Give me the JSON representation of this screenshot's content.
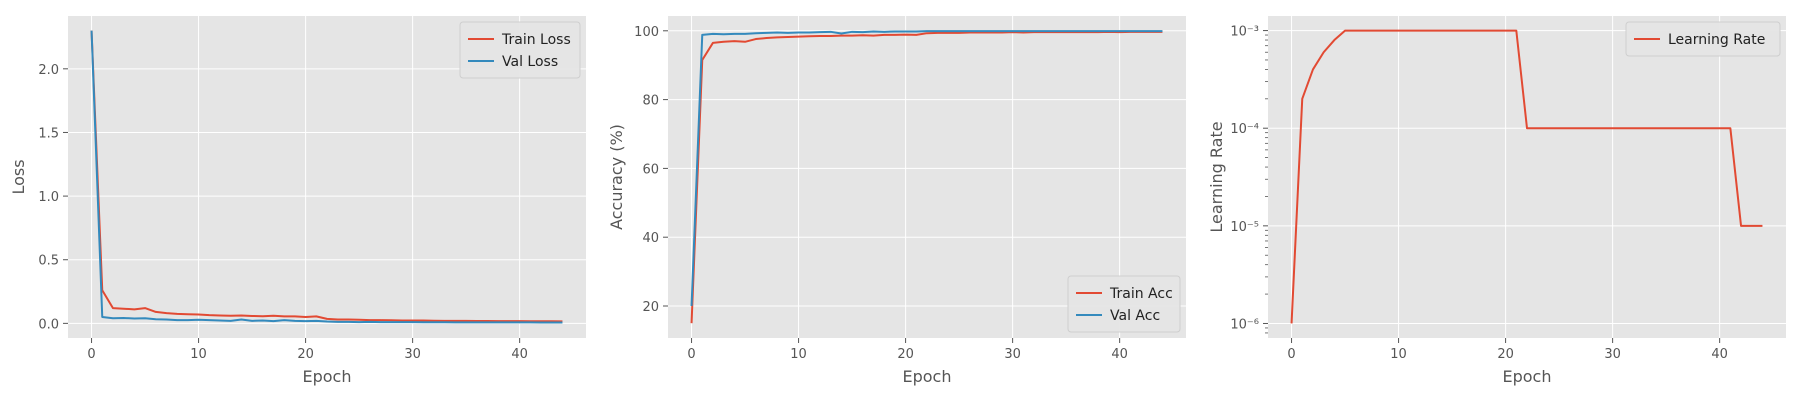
{
  "colors": {
    "train": "#e24a33",
    "val": "#348abd",
    "panel_bg": "#e5e5e5",
    "grid": "#ffffff"
  },
  "chart_data": [
    {
      "type": "line",
      "xlabel": "Epoch",
      "ylabel": "Loss",
      "xlim": [
        -2.2,
        46.2
      ],
      "ylim": [
        -0.115,
        2.415
      ],
      "xticks": [
        0,
        10,
        20,
        30,
        40
      ],
      "xtick_labels": [
        "0",
        "10",
        "20",
        "30",
        "40"
      ],
      "yticks": [
        0.0,
        0.5,
        1.0,
        1.5,
        2.0
      ],
      "ytick_labels": [
        "0.0",
        "0.5",
        "1.0",
        "1.5",
        "2.0"
      ],
      "legend_position": "top-right",
      "grid": true,
      "series": [
        {
          "name": "Train Loss",
          "color": "#e24a33",
          "x": [
            0,
            1,
            2,
            3,
            4,
            5,
            6,
            7,
            8,
            9,
            10,
            11,
            12,
            13,
            14,
            15,
            16,
            17,
            18,
            19,
            20,
            21,
            22,
            23,
            24,
            25,
            26,
            27,
            28,
            29,
            30,
            31,
            32,
            33,
            34,
            35,
            36,
            37,
            38,
            39,
            40,
            41,
            42,
            43,
            44
          ],
          "y": [
            2.3,
            0.26,
            0.12,
            0.115,
            0.11,
            0.12,
            0.09,
            0.08,
            0.075,
            0.072,
            0.07,
            0.065,
            0.062,
            0.06,
            0.062,
            0.058,
            0.056,
            0.06,
            0.055,
            0.055,
            0.05,
            0.055,
            0.035,
            0.03,
            0.03,
            0.028,
            0.025,
            0.025,
            0.024,
            0.023,
            0.022,
            0.022,
            0.021,
            0.02,
            0.02,
            0.02,
            0.019,
            0.019,
            0.018,
            0.018,
            0.018,
            0.017,
            0.017,
            0.017,
            0.016
          ]
        },
        {
          "name": "Val Loss",
          "color": "#348abd",
          "x": [
            0,
            1,
            2,
            3,
            4,
            5,
            6,
            7,
            8,
            9,
            10,
            11,
            12,
            13,
            14,
            15,
            16,
            17,
            18,
            19,
            20,
            21,
            22,
            23,
            24,
            25,
            26,
            27,
            28,
            29,
            30,
            31,
            32,
            33,
            34,
            35,
            36,
            37,
            38,
            39,
            40,
            41,
            42,
            43,
            44
          ],
          "y": [
            2.3,
            0.05,
            0.04,
            0.042,
            0.038,
            0.04,
            0.032,
            0.03,
            0.025,
            0.025,
            0.028,
            0.025,
            0.022,
            0.02,
            0.03,
            0.02,
            0.022,
            0.018,
            0.025,
            0.02,
            0.018,
            0.02,
            0.015,
            0.012,
            0.012,
            0.01,
            0.012,
            0.01,
            0.01,
            0.01,
            0.01,
            0.009,
            0.009,
            0.009,
            0.008,
            0.008,
            0.008,
            0.008,
            0.008,
            0.008,
            0.008,
            0.008,
            0.007,
            0.007,
            0.007
          ]
        }
      ]
    },
    {
      "type": "line",
      "xlabel": "Epoch",
      "ylabel": "Accuracy (%)",
      "xlim": [
        -2.2,
        46.2
      ],
      "ylim": [
        10.7,
        104.3
      ],
      "xticks": [
        0,
        10,
        20,
        30,
        40
      ],
      "xtick_labels": [
        "0",
        "10",
        "20",
        "30",
        "40"
      ],
      "yticks": [
        20,
        40,
        60,
        80,
        100
      ],
      "ytick_labels": [
        "20",
        "40",
        "60",
        "80",
        "100"
      ],
      "legend_position": "bottom-right",
      "grid": true,
      "series": [
        {
          "name": "Train Acc",
          "color": "#e24a33",
          "x": [
            0,
            1,
            2,
            3,
            4,
            5,
            6,
            7,
            8,
            9,
            10,
            11,
            12,
            13,
            14,
            15,
            16,
            17,
            18,
            19,
            20,
            21,
            22,
            23,
            24,
            25,
            26,
            27,
            28,
            29,
            30,
            31,
            32,
            33,
            34,
            35,
            36,
            37,
            38,
            39,
            40,
            41,
            42,
            43,
            44
          ],
          "y": [
            15,
            91.5,
            96.5,
            96.8,
            97.0,
            96.8,
            97.6,
            97.9,
            98.1,
            98.2,
            98.3,
            98.4,
            98.5,
            98.5,
            98.6,
            98.6,
            98.7,
            98.6,
            98.8,
            98.8,
            98.9,
            98.8,
            99.3,
            99.4,
            99.4,
            99.4,
            99.5,
            99.5,
            99.5,
            99.5,
            99.6,
            99.5,
            99.6,
            99.6,
            99.6,
            99.6,
            99.6,
            99.6,
            99.6,
            99.7,
            99.6,
            99.7,
            99.7,
            99.7,
            99.7
          ]
        },
        {
          "name": "Val Acc",
          "color": "#348abd",
          "x": [
            0,
            1,
            2,
            3,
            4,
            5,
            6,
            7,
            8,
            9,
            10,
            11,
            12,
            13,
            14,
            15,
            16,
            17,
            18,
            19,
            20,
            21,
            22,
            23,
            24,
            25,
            26,
            27,
            28,
            29,
            30,
            31,
            32,
            33,
            34,
            35,
            36,
            37,
            38,
            39,
            40,
            41,
            42,
            43,
            44
          ],
          "y": [
            20,
            98.8,
            99.1,
            99.0,
            99.1,
            99.1,
            99.3,
            99.4,
            99.5,
            99.4,
            99.5,
            99.5,
            99.6,
            99.7,
            99.2,
            99.7,
            99.6,
            99.8,
            99.7,
            99.8,
            99.8,
            99.8,
            99.9,
            99.9,
            99.9,
            99.9,
            99.9,
            99.9,
            99.9,
            99.9,
            99.9,
            99.9,
            99.9,
            99.9,
            99.9,
            99.9,
            99.9,
            99.9,
            99.9,
            99.9,
            99.9,
            99.9,
            99.9,
            99.9,
            99.9
          ]
        }
      ]
    },
    {
      "type": "line",
      "xlabel": "Epoch",
      "ylabel": "Learning Rate",
      "xlim": [
        -2.2,
        46.2
      ],
      "ylim": [
        7.1e-07,
        0.00141
      ],
      "yscale": "log",
      "xticks": [
        0,
        10,
        20,
        30,
        40
      ],
      "xtick_labels": [
        "0",
        "10",
        "20",
        "30",
        "40"
      ],
      "yticks": [
        1e-06,
        1e-05,
        0.0001,
        0.001
      ],
      "ytick_labels": [
        "10⁻⁶",
        "10⁻⁵",
        "10⁻⁴",
        "10⁻³"
      ],
      "legend_position": "top-right",
      "grid": true,
      "series": [
        {
          "name": "Learning Rate",
          "color": "#e24a33",
          "x": [
            0,
            1,
            2,
            3,
            4,
            5,
            6,
            7,
            8,
            9,
            10,
            11,
            12,
            13,
            14,
            15,
            16,
            17,
            18,
            19,
            20,
            21,
            22,
            23,
            24,
            25,
            26,
            27,
            28,
            29,
            30,
            31,
            32,
            33,
            34,
            35,
            36,
            37,
            38,
            39,
            40,
            41,
            42,
            43,
            44
          ],
          "y": [
            1e-06,
            0.0002,
            0.0004,
            0.0006,
            0.0008,
            0.001,
            0.001,
            0.001,
            0.001,
            0.001,
            0.001,
            0.001,
            0.001,
            0.001,
            0.001,
            0.001,
            0.001,
            0.001,
            0.001,
            0.001,
            0.001,
            0.001,
            0.0001,
            0.0001,
            0.0001,
            0.0001,
            0.0001,
            0.0001,
            0.0001,
            0.0001,
            0.0001,
            0.0001,
            0.0001,
            0.0001,
            0.0001,
            0.0001,
            0.0001,
            0.0001,
            0.0001,
            0.0001,
            0.0001,
            0.0001,
            1e-05,
            1e-05,
            1e-05
          ]
        }
      ]
    }
  ]
}
